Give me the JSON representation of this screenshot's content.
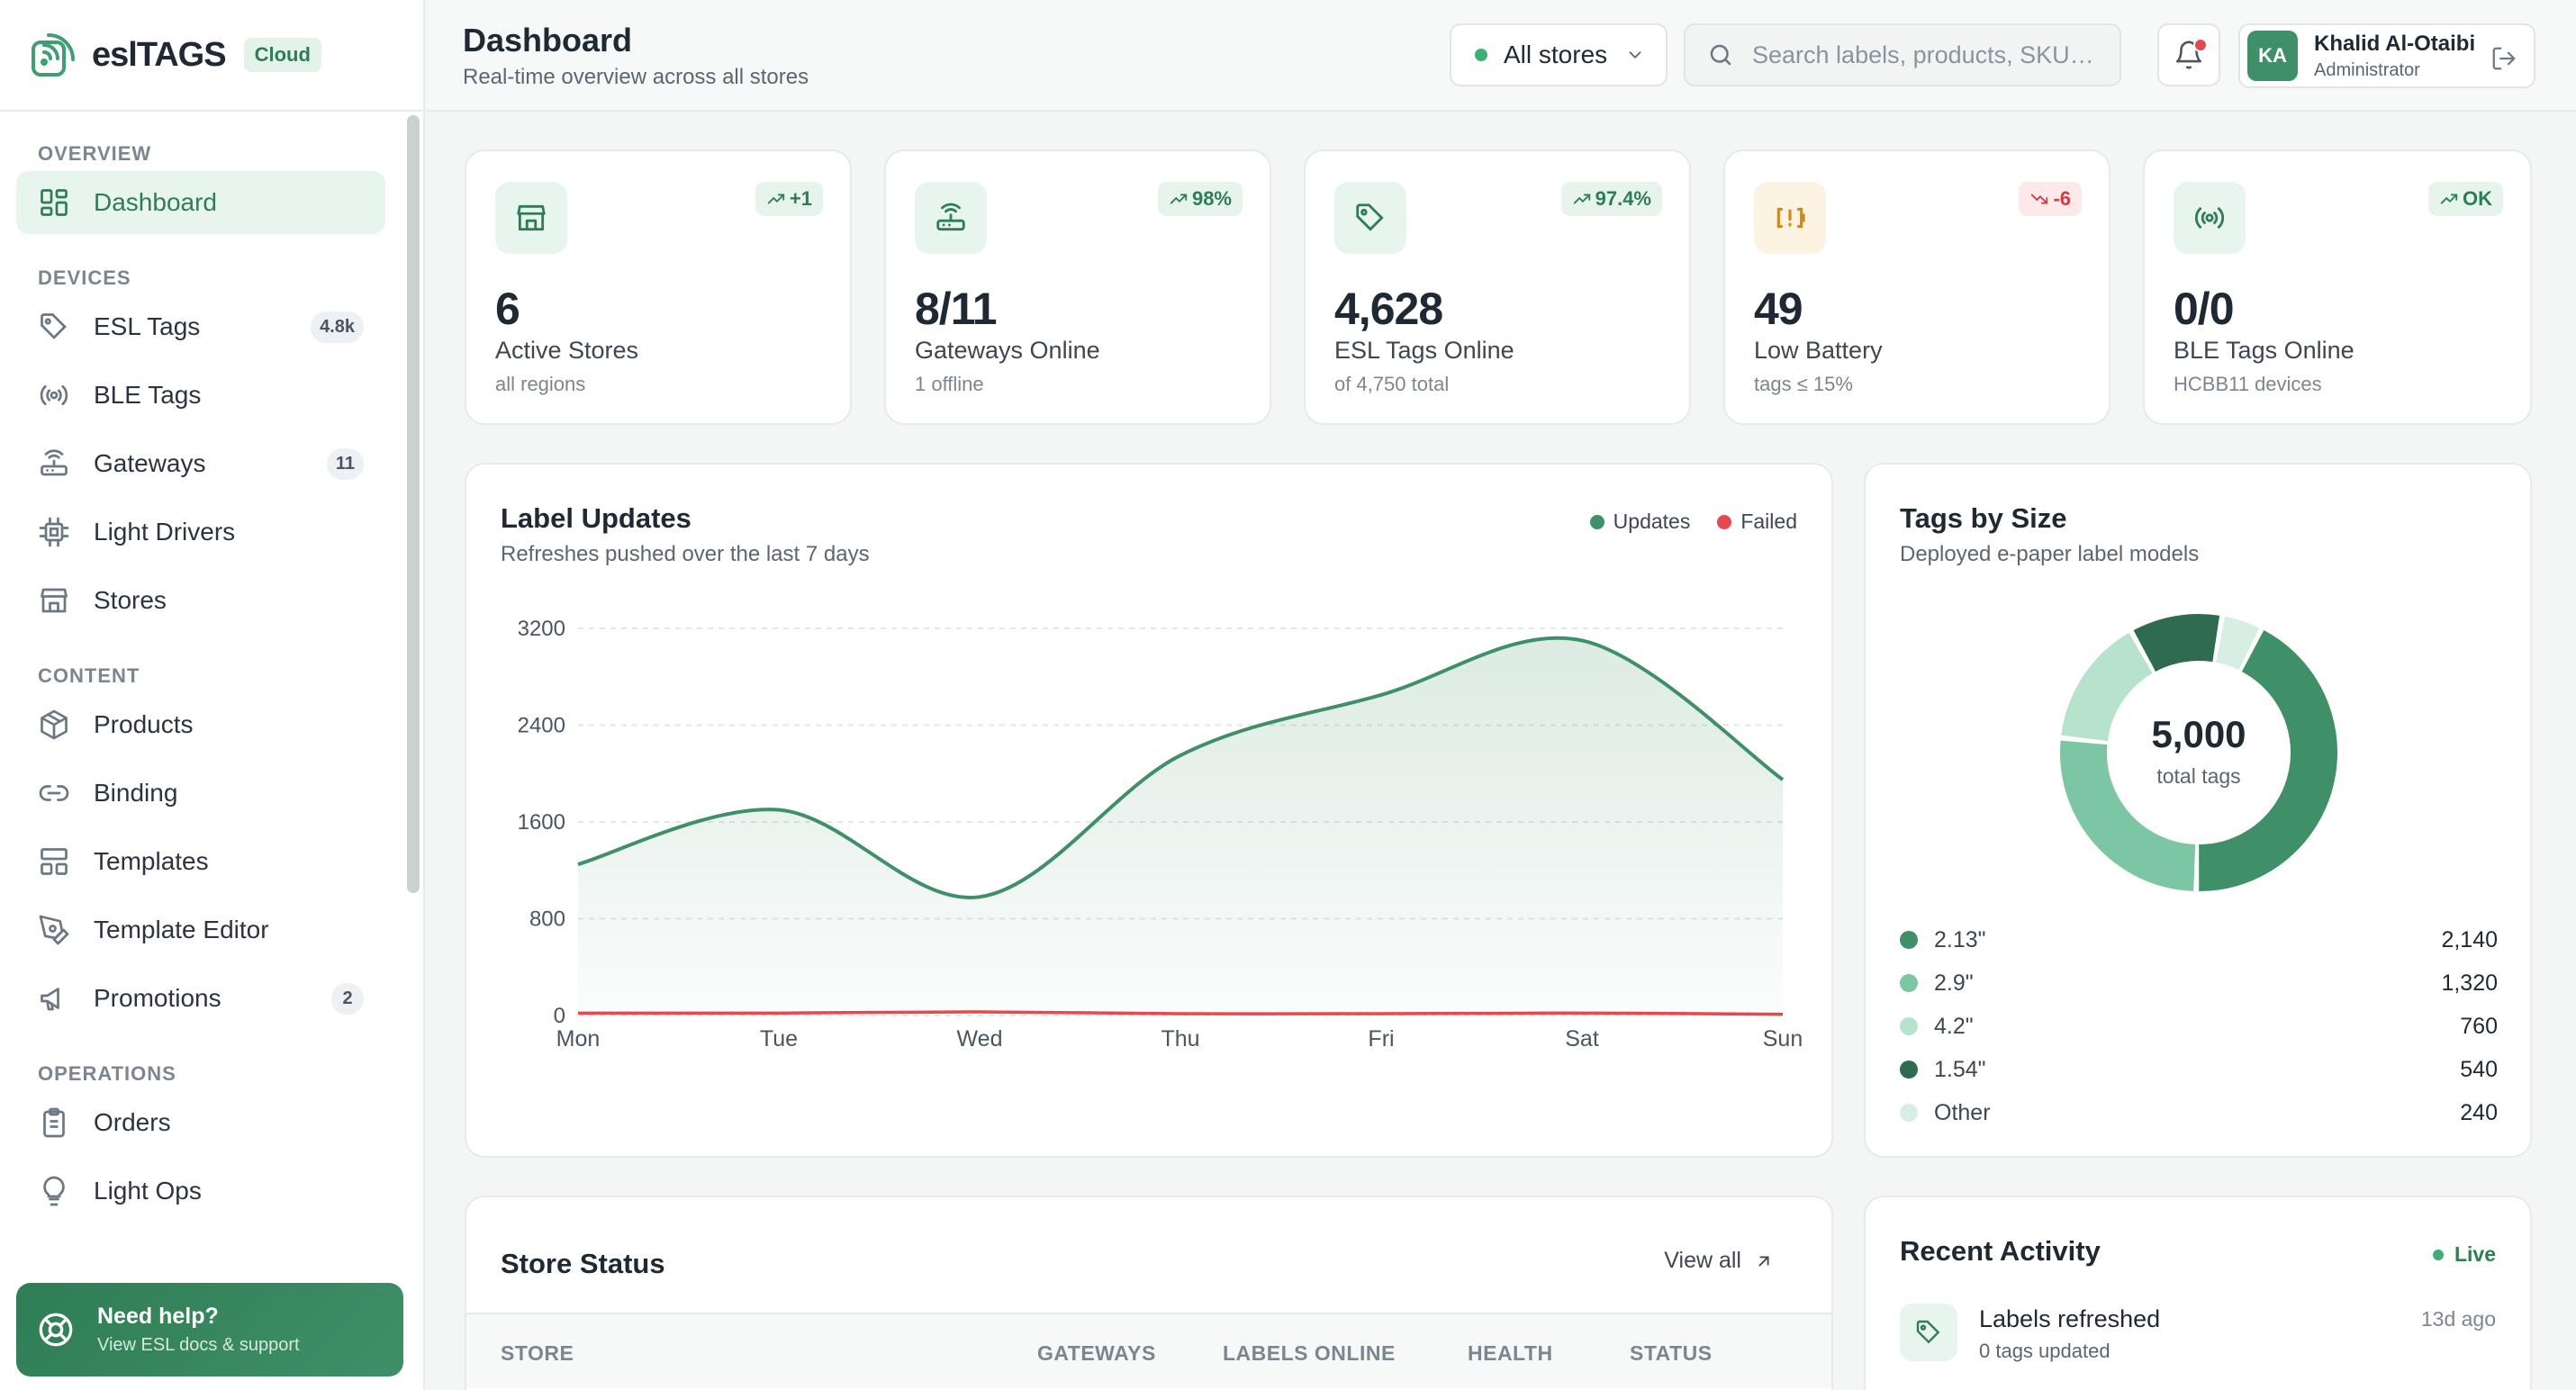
{
  "brand": {
    "name": "eslTAGS",
    "badge": "Cloud"
  },
  "sidebar": {
    "sections": [
      {
        "title": "OVERVIEW",
        "items": [
          {
            "label": "Dashboard",
            "icon": "dashboard-icon",
            "active": true
          }
        ]
      },
      {
        "title": "DEVICES",
        "items": [
          {
            "label": "ESL Tags",
            "icon": "tag-icon",
            "badge": "4.8k"
          },
          {
            "label": "BLE Tags",
            "icon": "broadcast-icon"
          },
          {
            "label": "Gateways",
            "icon": "router-icon",
            "badge": "11"
          },
          {
            "label": "Light Drivers",
            "icon": "chip-icon"
          },
          {
            "label": "Stores",
            "icon": "store-icon"
          }
        ]
      },
      {
        "title": "CONTENT",
        "items": [
          {
            "label": "Products",
            "icon": "box-icon"
          },
          {
            "label": "Binding",
            "icon": "link-icon"
          },
          {
            "label": "Templates",
            "icon": "layout-icon"
          },
          {
            "label": "Template Editor",
            "icon": "pen-icon"
          },
          {
            "label": "Promotions",
            "icon": "megaphone-icon",
            "badge": "2"
          }
        ]
      },
      {
        "title": "OPERATIONS",
        "items": [
          {
            "label": "Orders",
            "icon": "clipboard-icon"
          },
          {
            "label": "Light Ops",
            "icon": "bulb-icon"
          }
        ]
      }
    ],
    "help": {
      "title": "Need help?",
      "subtitle": "View ESL docs & support"
    }
  },
  "header": {
    "title": "Dashboard",
    "subtitle": "Real-time overview across all stores",
    "store_select": "All stores",
    "search_placeholder": "Search labels, products, SKU…",
    "user": {
      "initials": "KA",
      "name": "Khalid Al-Otaibi",
      "role": "Administrator"
    }
  },
  "stats": [
    {
      "value": "6",
      "label": "Active Stores",
      "sub": "all regions",
      "trend": "+1",
      "trend_dir": "up",
      "icon": "store-icon"
    },
    {
      "value": "8/11",
      "label": "Gateways Online",
      "sub": "1 offline",
      "trend": "98%",
      "trend_dir": "up",
      "icon": "router-icon"
    },
    {
      "value": "4,628",
      "label": "ESL Tags Online",
      "sub": "of 4,750 total",
      "trend": "97.4%",
      "trend_dir": "up",
      "icon": "tag-icon"
    },
    {
      "value": "49",
      "label": "Low Battery",
      "sub": "tags ≤ 15%",
      "trend": "-6",
      "trend_dir": "down",
      "icon": "battery-alert-icon"
    },
    {
      "value": "0/0",
      "label": "BLE Tags Online",
      "sub": "HCBB11 devices",
      "trend": "OK",
      "trend_dir": "up",
      "icon": "broadcast-icon"
    }
  ],
  "label_updates": {
    "title": "Label Updates",
    "subtitle": "Refreshes pushed over the last 7 days",
    "legend": [
      "Updates",
      "Failed"
    ]
  },
  "chart_data": [
    {
      "type": "area",
      "categories": [
        "Mon",
        "Tue",
        "Wed",
        "Thu",
        "Fri",
        "Sat",
        "Sun"
      ],
      "series": [
        {
          "name": "Updates",
          "values": [
            1250,
            1700,
            980,
            2150,
            2650,
            3100,
            1950
          ],
          "color": "#3f8f68"
        },
        {
          "name": "Failed",
          "values": [
            20,
            20,
            30,
            15,
            15,
            20,
            10
          ],
          "color": "#e5484d"
        }
      ],
      "ylim": [
        0,
        3200
      ],
      "yticks": [
        0,
        800,
        1600,
        2400,
        3200
      ],
      "grid": true,
      "legend": "top-right"
    },
    {
      "type": "pie",
      "title": "Tags by Size",
      "subtitle": "Deployed e-paper label models",
      "center_value": "5,000",
      "center_label": "total tags",
      "categories": [
        "2.13\"",
        "2.9\"",
        "4.2\"",
        "1.54\"",
        "Other"
      ],
      "values": [
        2140,
        1320,
        760,
        540,
        240
      ],
      "value_labels": [
        "2,140",
        "1,320",
        "760",
        "540",
        "240"
      ],
      "colors": [
        "#3f8f68",
        "#7cc6a3",
        "#b7e3cd",
        "#2f6b4f",
        "#d7efe3"
      ]
    }
  ],
  "store_status": {
    "title": "Store Status",
    "view_all": "View all",
    "columns": [
      "STORE",
      "GATEWAYS",
      "LABELS ONLINE",
      "HEALTH",
      "STATUS"
    ]
  },
  "activity": {
    "title": "Recent Activity",
    "live": "Live",
    "items": [
      {
        "title": "Labels refreshed",
        "sub": "0 tags updated",
        "time": "13d ago",
        "icon": "tag-icon"
      }
    ]
  }
}
